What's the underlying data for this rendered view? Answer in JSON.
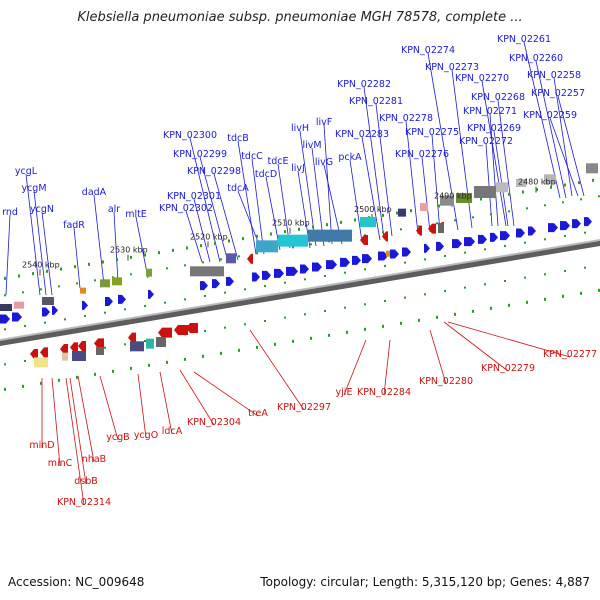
{
  "title": "Klebsiella pneumoniae subsp. pneumoniae MGH 78578, complete ...",
  "footer": {
    "accession_label": "Accession: NC_009648",
    "stats_label": "Topology: circular; Length: 5,315,120 bp; Genes: 4,887"
  },
  "colors": {
    "forward": "#1a1ad6",
    "reverse": "#cc1111",
    "backbone": "#777777"
  },
  "forward_genes": [
    "rnd",
    "ycgL",
    "ycgM",
    "ycgN",
    "fadR",
    "dadA",
    "alr",
    "mltE",
    "KPN_02302",
    "KPN_02301",
    "KPN_02300",
    "KPN_02299",
    "KPN_02298",
    "tdcB",
    "tdcC",
    "tdcA",
    "tdcD",
    "tdcE",
    "livJ",
    "livH",
    "livM",
    "livF",
    "livG",
    "pckA",
    "KPN_02283",
    "KPN_02282",
    "KPN_02281",
    "KPN_02278",
    "KPN_02276",
    "KPN_02275",
    "KPN_02274",
    "KPN_02273",
    "KPN_02272",
    "KPN_02271",
    "KPN_02270",
    "KPN_02269",
    "KPN_02268",
    "KPN_02261",
    "KPN_02260",
    "KPN_02259",
    "KPN_02258",
    "KPN_02257"
  ],
  "reverse_genes": [
    "minD",
    "minC",
    "dsbB",
    "nhaB",
    "KPN_02314",
    "ycgB",
    "ycgO",
    "ldcA",
    "KPN_02304",
    "treA",
    "KPN_02297",
    "yjiE",
    "KPN_02284",
    "KPN_02280",
    "KPN_02279",
    "KPN_02277"
  ],
  "scale_labels": [
    "2540 kbp",
    "2530 kbp",
    "2520 kbp",
    "2510 kbp",
    "2500 kbp",
    "2490 kbp",
    "2480 kbp"
  ]
}
